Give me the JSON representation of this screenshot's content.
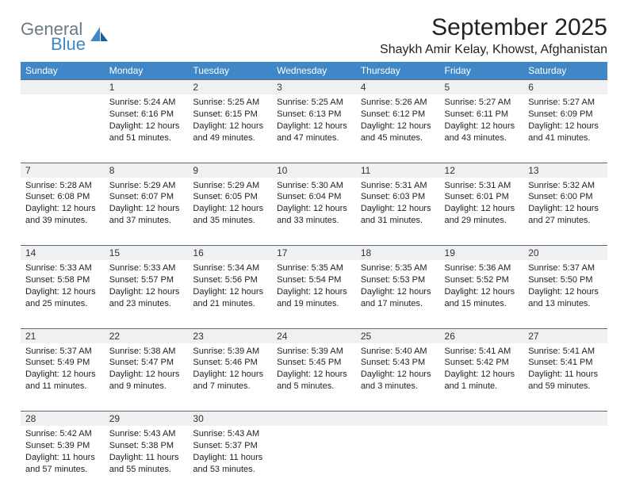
{
  "logo": {
    "text1": "General",
    "text2": "Blue"
  },
  "title": "September 2025",
  "location": "Shaykh Amir Kelay, Khowst, Afghanistan",
  "colors": {
    "header_bg": "#3f87c7",
    "header_text": "#ffffff",
    "daynum_bg": "#eef0f2",
    "daynum_border": "#5a6a78",
    "body_text": "#222222",
    "logo_gray": "#6b7a85",
    "logo_blue": "#3f87c7"
  },
  "weekdays": [
    "Sunday",
    "Monday",
    "Tuesday",
    "Wednesday",
    "Thursday",
    "Friday",
    "Saturday"
  ],
  "weeks": [
    {
      "nums": [
        "",
        "1",
        "2",
        "3",
        "4",
        "5",
        "6"
      ],
      "cells": [
        null,
        {
          "sr": "Sunrise: 5:24 AM",
          "ss": "Sunset: 6:16 PM",
          "dl": "Daylight: 12 hours and 51 minutes."
        },
        {
          "sr": "Sunrise: 5:25 AM",
          "ss": "Sunset: 6:15 PM",
          "dl": "Daylight: 12 hours and 49 minutes."
        },
        {
          "sr": "Sunrise: 5:25 AM",
          "ss": "Sunset: 6:13 PM",
          "dl": "Daylight: 12 hours and 47 minutes."
        },
        {
          "sr": "Sunrise: 5:26 AM",
          "ss": "Sunset: 6:12 PM",
          "dl": "Daylight: 12 hours and 45 minutes."
        },
        {
          "sr": "Sunrise: 5:27 AM",
          "ss": "Sunset: 6:11 PM",
          "dl": "Daylight: 12 hours and 43 minutes."
        },
        {
          "sr": "Sunrise: 5:27 AM",
          "ss": "Sunset: 6:09 PM",
          "dl": "Daylight: 12 hours and 41 minutes."
        }
      ]
    },
    {
      "nums": [
        "7",
        "8",
        "9",
        "10",
        "11",
        "12",
        "13"
      ],
      "cells": [
        {
          "sr": "Sunrise: 5:28 AM",
          "ss": "Sunset: 6:08 PM",
          "dl": "Daylight: 12 hours and 39 minutes."
        },
        {
          "sr": "Sunrise: 5:29 AM",
          "ss": "Sunset: 6:07 PM",
          "dl": "Daylight: 12 hours and 37 minutes."
        },
        {
          "sr": "Sunrise: 5:29 AM",
          "ss": "Sunset: 6:05 PM",
          "dl": "Daylight: 12 hours and 35 minutes."
        },
        {
          "sr": "Sunrise: 5:30 AM",
          "ss": "Sunset: 6:04 PM",
          "dl": "Daylight: 12 hours and 33 minutes."
        },
        {
          "sr": "Sunrise: 5:31 AM",
          "ss": "Sunset: 6:03 PM",
          "dl": "Daylight: 12 hours and 31 minutes."
        },
        {
          "sr": "Sunrise: 5:31 AM",
          "ss": "Sunset: 6:01 PM",
          "dl": "Daylight: 12 hours and 29 minutes."
        },
        {
          "sr": "Sunrise: 5:32 AM",
          "ss": "Sunset: 6:00 PM",
          "dl": "Daylight: 12 hours and 27 minutes."
        }
      ]
    },
    {
      "nums": [
        "14",
        "15",
        "16",
        "17",
        "18",
        "19",
        "20"
      ],
      "cells": [
        {
          "sr": "Sunrise: 5:33 AM",
          "ss": "Sunset: 5:58 PM",
          "dl": "Daylight: 12 hours and 25 minutes."
        },
        {
          "sr": "Sunrise: 5:33 AM",
          "ss": "Sunset: 5:57 PM",
          "dl": "Daylight: 12 hours and 23 minutes."
        },
        {
          "sr": "Sunrise: 5:34 AM",
          "ss": "Sunset: 5:56 PM",
          "dl": "Daylight: 12 hours and 21 minutes."
        },
        {
          "sr": "Sunrise: 5:35 AM",
          "ss": "Sunset: 5:54 PM",
          "dl": "Daylight: 12 hours and 19 minutes."
        },
        {
          "sr": "Sunrise: 5:35 AM",
          "ss": "Sunset: 5:53 PM",
          "dl": "Daylight: 12 hours and 17 minutes."
        },
        {
          "sr": "Sunrise: 5:36 AM",
          "ss": "Sunset: 5:52 PM",
          "dl": "Daylight: 12 hours and 15 minutes."
        },
        {
          "sr": "Sunrise: 5:37 AM",
          "ss": "Sunset: 5:50 PM",
          "dl": "Daylight: 12 hours and 13 minutes."
        }
      ]
    },
    {
      "nums": [
        "21",
        "22",
        "23",
        "24",
        "25",
        "26",
        "27"
      ],
      "cells": [
        {
          "sr": "Sunrise: 5:37 AM",
          "ss": "Sunset: 5:49 PM",
          "dl": "Daylight: 12 hours and 11 minutes."
        },
        {
          "sr": "Sunrise: 5:38 AM",
          "ss": "Sunset: 5:47 PM",
          "dl": "Daylight: 12 hours and 9 minutes."
        },
        {
          "sr": "Sunrise: 5:39 AM",
          "ss": "Sunset: 5:46 PM",
          "dl": "Daylight: 12 hours and 7 minutes."
        },
        {
          "sr": "Sunrise: 5:39 AM",
          "ss": "Sunset: 5:45 PM",
          "dl": "Daylight: 12 hours and 5 minutes."
        },
        {
          "sr": "Sunrise: 5:40 AM",
          "ss": "Sunset: 5:43 PM",
          "dl": "Daylight: 12 hours and 3 minutes."
        },
        {
          "sr": "Sunrise: 5:41 AM",
          "ss": "Sunset: 5:42 PM",
          "dl": "Daylight: 12 hours and 1 minute."
        },
        {
          "sr": "Sunrise: 5:41 AM",
          "ss": "Sunset: 5:41 PM",
          "dl": "Daylight: 11 hours and 59 minutes."
        }
      ]
    },
    {
      "nums": [
        "28",
        "29",
        "30",
        "",
        "",
        "",
        ""
      ],
      "cells": [
        {
          "sr": "Sunrise: 5:42 AM",
          "ss": "Sunset: 5:39 PM",
          "dl": "Daylight: 11 hours and 57 minutes."
        },
        {
          "sr": "Sunrise: 5:43 AM",
          "ss": "Sunset: 5:38 PM",
          "dl": "Daylight: 11 hours and 55 minutes."
        },
        {
          "sr": "Sunrise: 5:43 AM",
          "ss": "Sunset: 5:37 PM",
          "dl": "Daylight: 11 hours and 53 minutes."
        },
        null,
        null,
        null,
        null
      ]
    }
  ]
}
